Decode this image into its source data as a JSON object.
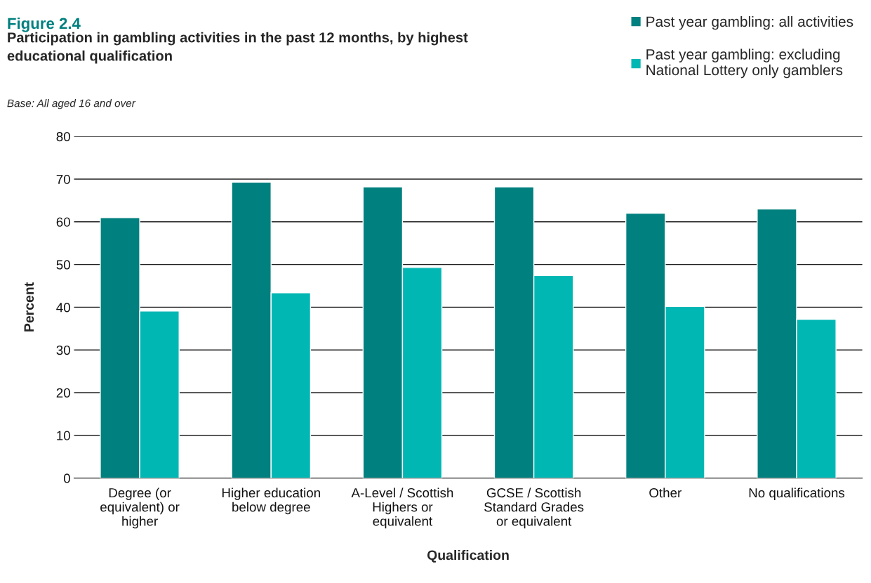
{
  "chart_data": {
    "type": "bar",
    "title": "Figure 2.4",
    "subtitle": "Participation in gambling activities in the past 12 months, by highest\neducational qualification",
    "annotations": [
      "Base: All aged 16 and over"
    ],
    "xlabel": "Qualification",
    "ylabel": "Percent",
    "categories": [
      "Degree (or\nequivalent) or\nhigher",
      "Higher education\nbelow degree",
      "A-Level / Scottish\nHighers or\nequivalent",
      "GCSE / Scottish\nStandard Grades\nor equivalent",
      "Other",
      "No qualifications"
    ],
    "series": [
      {
        "name": "Past year gambling: all activities",
        "color": "#00807f",
        "values": [
          61,
          69.3,
          68.2,
          68.2,
          62,
          63
        ]
      },
      {
        "name": "Past year gambling: excluding\nNational Lottery only gamblers",
        "color": "#00b7b4",
        "values": [
          39.1,
          43.4,
          49.3,
          47.4,
          40.2,
          37.2
        ]
      }
    ],
    "ylim": [
      0,
      80
    ],
    "yticks": [
      0,
      10,
      20,
      30,
      40,
      50,
      60,
      70,
      80
    ],
    "grid": "y",
    "legend": "top right"
  }
}
